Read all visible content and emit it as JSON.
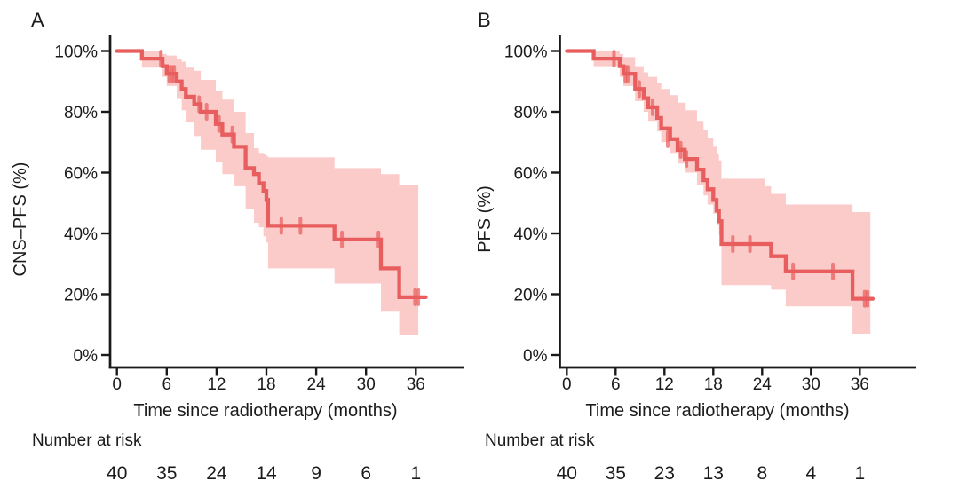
{
  "colors": {
    "curve": "#E85D5D",
    "band": "#FACBC9",
    "text": "#1B1B1B",
    "axis": "#191919",
    "background": "#FFFFFF"
  },
  "chart_data": [
    {
      "type": "line",
      "subtype": "kaplan-meier-step-curve-with-confidence-band",
      "panel_label": "A",
      "ylabel": "CNS–PFS (%)",
      "xlabel": "Time since radiotherapy (months)",
      "xticks": [
        0,
        6,
        12,
        18,
        24,
        30,
        36
      ],
      "ytick_labels": [
        "0%",
        "20%",
        "40%",
        "60%",
        "80%",
        "100%"
      ],
      "ylim": [
        0,
        100
      ],
      "grid": "off",
      "legend": "none",
      "risk_label": "Number at risk",
      "risk_counts": [
        40,
        35,
        24,
        14,
        9,
        6,
        1
      ],
      "curve": [
        [
          0,
          100
        ],
        [
          3.0,
          97.5
        ],
        [
          5.5,
          95
        ],
        [
          6.0,
          92.5
        ],
        [
          7.2,
          90
        ],
        [
          7.8,
          87.5
        ],
        [
          8.3,
          85
        ],
        [
          9.3,
          82.5
        ],
        [
          10.1,
          80
        ],
        [
          11.9,
          76
        ],
        [
          12.7,
          72.5
        ],
        [
          14.1,
          68.5
        ],
        [
          15.5,
          61.5
        ],
        [
          16.5,
          59.5
        ],
        [
          17.1,
          56.5
        ],
        [
          17.65,
          54
        ],
        [
          18.0,
          51
        ],
        [
          18.2,
          42.5
        ],
        [
          26.2,
          38
        ],
        [
          31.8,
          28.5
        ],
        [
          34.0,
          19
        ],
        [
          37.2,
          19
        ]
      ],
      "censors": [
        [
          5.3,
          97.5
        ],
        [
          6.3,
          92.5
        ],
        [
          6.6,
          92.5
        ],
        [
          6.9,
          92.5
        ],
        [
          9.9,
          82.5
        ],
        [
          10.8,
          80
        ],
        [
          12.3,
          76
        ],
        [
          13.9,
          72.5
        ],
        [
          19.8,
          42.5
        ],
        [
          22.1,
          42.5
        ],
        [
          27.1,
          38
        ],
        [
          31.5,
          38
        ],
        [
          35.9,
          19
        ],
        [
          36.3,
          19
        ]
      ],
      "band": [
        [
          3.0,
          100,
          94.5
        ],
        [
          5.5,
          99,
          91.5
        ],
        [
          6.0,
          98.5,
          88.5
        ],
        [
          7.2,
          97.5,
          84.5
        ],
        [
          7.8,
          96.5,
          80.5
        ],
        [
          8.3,
          94.5,
          76.5
        ],
        [
          9.3,
          93.5,
          72
        ],
        [
          10.1,
          90.5,
          67.5
        ],
        [
          11.9,
          87,
          63.5
        ],
        [
          12.7,
          84,
          59.5
        ],
        [
          14.1,
          80,
          55.5
        ],
        [
          15.5,
          73,
          48
        ],
        [
          16.5,
          68,
          43.5
        ],
        [
          17.1,
          66.5,
          42
        ],
        [
          17.65,
          66,
          39
        ],
        [
          18.0,
          65.5,
          37
        ],
        [
          18.2,
          65,
          28.5
        ],
        [
          26.2,
          61.5,
          23.5
        ],
        [
          31.8,
          59.5,
          14.5
        ],
        [
          34.0,
          56,
          6.5
        ],
        [
          36.3,
          56,
          6.5
        ]
      ]
    },
    {
      "type": "line",
      "subtype": "kaplan-meier-step-curve-with-confidence-band",
      "panel_label": "B",
      "ylabel": "PFS (%)",
      "xlabel": "Time since radiotherapy (months)",
      "xticks": [
        0,
        6,
        12,
        18,
        24,
        30,
        36
      ],
      "ytick_labels": [
        "0%",
        "20%",
        "40%",
        "60%",
        "80%",
        "100%"
      ],
      "ylim": [
        0,
        100
      ],
      "grid": "off",
      "legend": "none",
      "risk_label": "Number at risk",
      "risk_counts": [
        40,
        35,
        23,
        13,
        8,
        4,
        1
      ],
      "curve": [
        [
          0,
          100
        ],
        [
          3.3,
          97.5
        ],
        [
          6.5,
          95
        ],
        [
          6.95,
          92.5
        ],
        [
          8.4,
          87.5
        ],
        [
          9.45,
          84.5
        ],
        [
          10.0,
          81.5
        ],
        [
          11.1,
          78
        ],
        [
          11.6,
          74.5
        ],
        [
          12.7,
          71
        ],
        [
          13.6,
          67.5
        ],
        [
          14.5,
          64.5
        ],
        [
          16.0,
          61
        ],
        [
          16.8,
          57.5
        ],
        [
          17.3,
          54.5
        ],
        [
          18.0,
          51
        ],
        [
          18.4,
          47.5
        ],
        [
          18.7,
          44
        ],
        [
          19.0,
          36.5
        ],
        [
          25.1,
          32.5
        ],
        [
          26.9,
          27.5
        ],
        [
          35.1,
          18.5
        ],
        [
          37.6,
          18.5
        ]
      ],
      "censors": [
        [
          5.8,
          97.5
        ],
        [
          7.2,
          92.5
        ],
        [
          7.5,
          92.5
        ],
        [
          8.9,
          87.5
        ],
        [
          10.55,
          81.5
        ],
        [
          12.4,
          71
        ],
        [
          14.0,
          67.5
        ],
        [
          14.7,
          64.5
        ],
        [
          20.4,
          36.5
        ],
        [
          22.5,
          36.5
        ],
        [
          27.8,
          27.5
        ],
        [
          32.7,
          27.5
        ],
        [
          36.6,
          18.5
        ],
        [
          36.95,
          18.5
        ]
      ],
      "band": [
        [
          3.3,
          100,
          95
        ],
        [
          6.5,
          99,
          91.5
        ],
        [
          6.95,
          98,
          88.5
        ],
        [
          8.4,
          95,
          83.5
        ],
        [
          9.45,
          93,
          80
        ],
        [
          10.0,
          91.5,
          77
        ],
        [
          11.1,
          89.5,
          73.5
        ],
        [
          11.6,
          87.5,
          70
        ],
        [
          12.7,
          85.5,
          66.5
        ],
        [
          13.6,
          83,
          63
        ],
        [
          14.5,
          80.5,
          60
        ],
        [
          16.0,
          77,
          56
        ],
        [
          16.8,
          74,
          52.5
        ],
        [
          17.3,
          71.5,
          49.5
        ],
        [
          18.0,
          68.5,
          46.5
        ],
        [
          18.4,
          66,
          43
        ],
        [
          18.7,
          64,
          39.5
        ],
        [
          19.0,
          58,
          23
        ],
        [
          24.4,
          55.5,
          23
        ],
        [
          25.1,
          53,
          21.5
        ],
        [
          26.9,
          49.5,
          16
        ],
        [
          35.1,
          47,
          7
        ],
        [
          37.3,
          47,
          7
        ]
      ]
    }
  ]
}
